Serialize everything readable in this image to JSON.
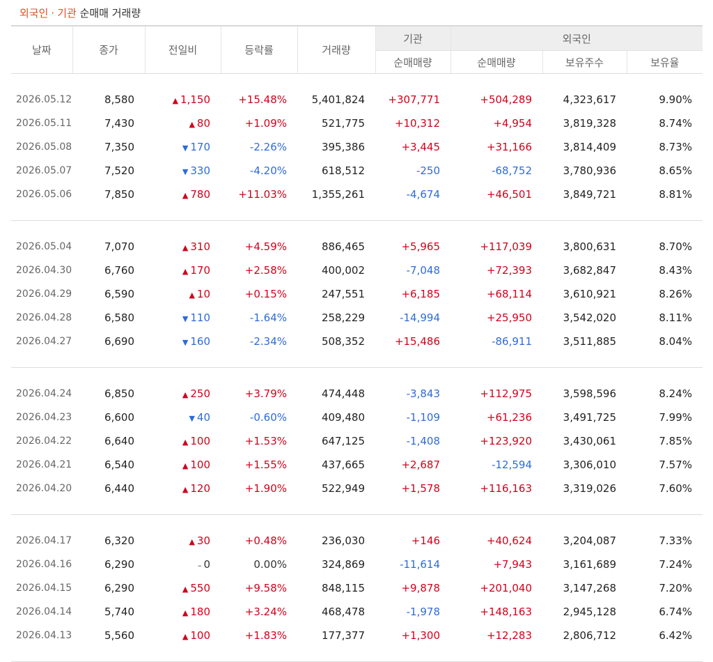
{
  "title": {
    "part1": "외국인",
    "dot": "·",
    "part2": "기관",
    "rest": " 순매매 거래량"
  },
  "headers": {
    "date": "날짜",
    "close": "종가",
    "change": "전일비",
    "rate": "등락률",
    "volume": "거래량",
    "inst_group": "기관",
    "foreign_group": "외국인",
    "inst_net": "순매매량",
    "foreign_net": "순매매량",
    "foreign_holding": "보유주수",
    "foreign_ratio": "보유율"
  },
  "groups": [
    [
      {
        "date": "2026.05.12",
        "close": "8,580",
        "dir": "up",
        "change": "1,150",
        "rate": "+15.48%",
        "volume": "5,401,824",
        "inst": "+307,771",
        "foreign": "+504,289",
        "holding": "4,323,617",
        "ratio": "9.90%"
      },
      {
        "date": "2026.05.11",
        "close": "7,430",
        "dir": "up",
        "change": "80",
        "rate": "+1.09%",
        "volume": "521,775",
        "inst": "+10,312",
        "foreign": "+4,954",
        "holding": "3,819,328",
        "ratio": "8.74%"
      },
      {
        "date": "2026.05.08",
        "close": "7,350",
        "dir": "down",
        "change": "170",
        "rate": "-2.26%",
        "volume": "395,386",
        "inst": "+3,445",
        "foreign": "+31,166",
        "holding": "3,814,409",
        "ratio": "8.73%"
      },
      {
        "date": "2026.05.07",
        "close": "7,520",
        "dir": "down",
        "change": "330",
        "rate": "-4.20%",
        "volume": "618,512",
        "inst": "-250",
        "foreign": "-68,752",
        "holding": "3,780,936",
        "ratio": "8.65%"
      },
      {
        "date": "2026.05.06",
        "close": "7,850",
        "dir": "up",
        "change": "780",
        "rate": "+11.03%",
        "volume": "1,355,261",
        "inst": "-4,674",
        "foreign": "+46,501",
        "holding": "3,849,721",
        "ratio": "8.81%"
      }
    ],
    [
      {
        "date": "2026.05.04",
        "close": "7,070",
        "dir": "up",
        "change": "310",
        "rate": "+4.59%",
        "volume": "886,465",
        "inst": "+5,965",
        "foreign": "+117,039",
        "holding": "3,800,631",
        "ratio": "8.70%"
      },
      {
        "date": "2026.04.30",
        "close": "6,760",
        "dir": "up",
        "change": "170",
        "rate": "+2.58%",
        "volume": "400,002",
        "inst": "-7,048",
        "foreign": "+72,393",
        "holding": "3,682,847",
        "ratio": "8.43%"
      },
      {
        "date": "2026.04.29",
        "close": "6,590",
        "dir": "up",
        "change": "10",
        "rate": "+0.15%",
        "volume": "247,551",
        "inst": "+6,185",
        "foreign": "+68,114",
        "holding": "3,610,921",
        "ratio": "8.26%"
      },
      {
        "date": "2026.04.28",
        "close": "6,580",
        "dir": "down",
        "change": "110",
        "rate": "-1.64%",
        "volume": "258,229",
        "inst": "-14,994",
        "foreign": "+25,950",
        "holding": "3,542,020",
        "ratio": "8.11%"
      },
      {
        "date": "2026.04.27",
        "close": "6,690",
        "dir": "down",
        "change": "160",
        "rate": "-2.34%",
        "volume": "508,352",
        "inst": "+15,486",
        "foreign": "-86,911",
        "holding": "3,511,885",
        "ratio": "8.04%"
      }
    ],
    [
      {
        "date": "2026.04.24",
        "close": "6,850",
        "dir": "up",
        "change": "250",
        "rate": "+3.79%",
        "volume": "474,448",
        "inst": "-3,843",
        "foreign": "+112,975",
        "holding": "3,598,596",
        "ratio": "8.24%"
      },
      {
        "date": "2026.04.23",
        "close": "6,600",
        "dir": "down",
        "change": "40",
        "rate": "-0.60%",
        "volume": "409,480",
        "inst": "-1,109",
        "foreign": "+61,236",
        "holding": "3,491,725",
        "ratio": "7.99%"
      },
      {
        "date": "2026.04.22",
        "close": "6,640",
        "dir": "up",
        "change": "100",
        "rate": "+1.53%",
        "volume": "647,125",
        "inst": "-1,408",
        "foreign": "+123,920",
        "holding": "3,430,061",
        "ratio": "7.85%"
      },
      {
        "date": "2026.04.21",
        "close": "6,540",
        "dir": "up",
        "change": "100",
        "rate": "+1.55%",
        "volume": "437,665",
        "inst": "+2,687",
        "foreign": "-12,594",
        "holding": "3,306,010",
        "ratio": "7.57%"
      },
      {
        "date": "2026.04.20",
        "close": "6,440",
        "dir": "up",
        "change": "120",
        "rate": "+1.90%",
        "volume": "522,949",
        "inst": "+1,578",
        "foreign": "+116,163",
        "holding": "3,319,026",
        "ratio": "7.60%"
      }
    ],
    [
      {
        "date": "2026.04.17",
        "close": "6,320",
        "dir": "up",
        "change": "30",
        "rate": "+0.48%",
        "volume": "236,030",
        "inst": "+146",
        "foreign": "+40,624",
        "holding": "3,204,087",
        "ratio": "7.33%"
      },
      {
        "date": "2026.04.16",
        "close": "6,290",
        "dir": "flat",
        "change": "0",
        "rate": "0.00%",
        "volume": "324,869",
        "inst": "-11,614",
        "foreign": "+7,943",
        "holding": "3,161,689",
        "ratio": "7.24%"
      },
      {
        "date": "2026.04.15",
        "close": "6,290",
        "dir": "up",
        "change": "550",
        "rate": "+9.58%",
        "volume": "848,115",
        "inst": "+9,878",
        "foreign": "+201,040",
        "holding": "3,147,268",
        "ratio": "7.20%"
      },
      {
        "date": "2026.04.14",
        "close": "5,740",
        "dir": "up",
        "change": "180",
        "rate": "+3.24%",
        "volume": "468,478",
        "inst": "-1,978",
        "foreign": "+148,163",
        "holding": "2,945,128",
        "ratio": "6.74%"
      },
      {
        "date": "2026.04.13",
        "close": "5,560",
        "dir": "up",
        "change": "100",
        "rate": "+1.83%",
        "volume": "177,377",
        "inst": "+1,300",
        "foreign": "+12,283",
        "holding": "2,806,712",
        "ratio": "6.42%"
      }
    ]
  ],
  "colors": {
    "up": "#d0021b",
    "down": "#2e6bd8",
    "accent": "#e0501f"
  }
}
